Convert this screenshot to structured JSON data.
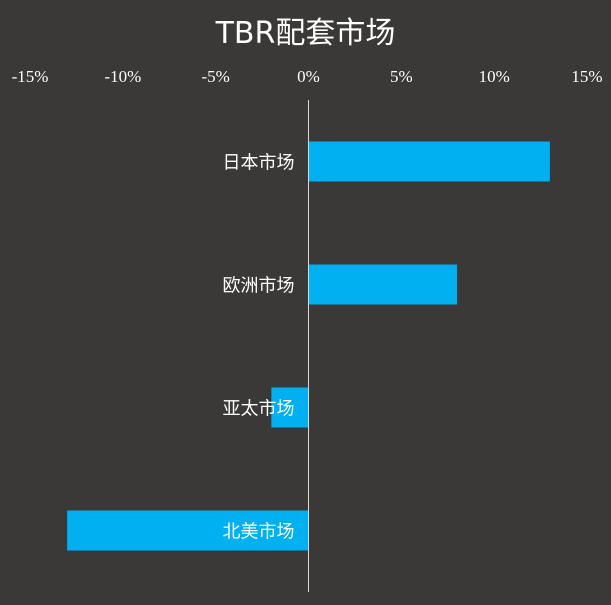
{
  "chart_data": {
    "type": "bar",
    "orientation": "horizontal",
    "title": "TBR配套市场",
    "categories": [
      "日本市场",
      "欧洲市场",
      "亚太市场",
      "北美市场"
    ],
    "values": [
      13,
      8,
      -2,
      -13
    ],
    "xlim": [
      -15,
      15
    ],
    "x_ticks": [
      "-15%",
      "-10%",
      "-5%",
      "0%",
      "5%",
      "10%",
      "15%"
    ],
    "x_axis_position": "top",
    "grid": false,
    "legend": "none",
    "bar_color": "#00b0f0",
    "background_color": "#3a3938",
    "text_color": "#ffffff"
  }
}
